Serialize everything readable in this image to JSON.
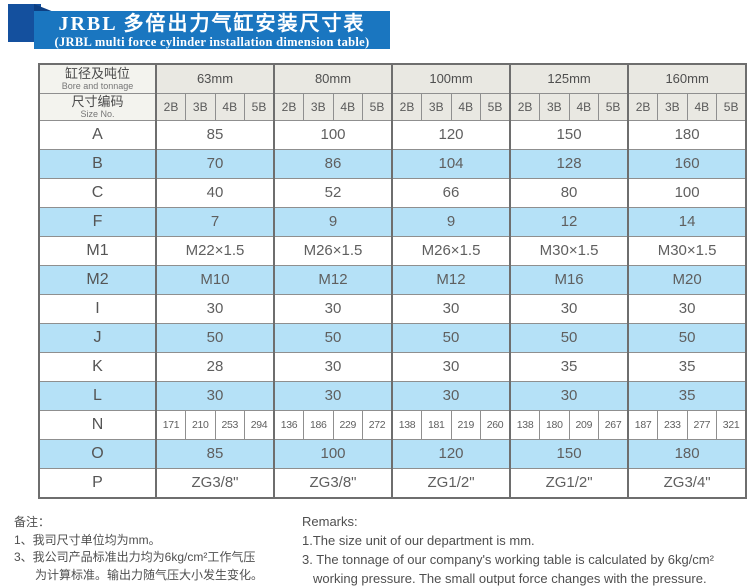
{
  "banner": {
    "title_cn": "JRBL 多倍出力气缸安装尺寸表",
    "title_en": "(JRBL multi force cylinder installation dimension table)"
  },
  "colors": {
    "banner_blue": "#1a76c0",
    "ribbon_navy": "#14509e",
    "row_shade_blue": "#b5e1f7",
    "header_gray": "#e9e8e2",
    "border_gray": "#8f8f8f"
  },
  "table": {
    "header": {
      "bore_label_cn": "缸径及吨位",
      "bore_label_en": "Bore and tonnage",
      "size_label_cn": "尺寸编码",
      "size_label_en": "Size No.",
      "bores": [
        "63mm",
        "80mm",
        "100mm",
        "125mm",
        "160mm"
      ],
      "size_codes": [
        "2B",
        "3B",
        "4B",
        "5B"
      ]
    },
    "rows": [
      {
        "label": "A",
        "type": "merged",
        "shade": false,
        "values": [
          "85",
          "100",
          "120",
          "150",
          "180"
        ]
      },
      {
        "label": "B",
        "type": "merged",
        "shade": true,
        "values": [
          "70",
          "86",
          "104",
          "128",
          "160"
        ]
      },
      {
        "label": "C",
        "type": "merged",
        "shade": false,
        "values": [
          "40",
          "52",
          "66",
          "80",
          "100"
        ]
      },
      {
        "label": "F",
        "type": "merged",
        "shade": true,
        "values": [
          "7",
          "9",
          "9",
          "12",
          "14"
        ]
      },
      {
        "label": "M1",
        "type": "merged",
        "shade": false,
        "values": [
          "M22×1.5",
          "M26×1.5",
          "M26×1.5",
          "M30×1.5",
          "M30×1.5"
        ]
      },
      {
        "label": "M2",
        "type": "merged",
        "shade": true,
        "values": [
          "M10",
          "M12",
          "M12",
          "M16",
          "M20"
        ]
      },
      {
        "label": "I",
        "type": "merged",
        "shade": false,
        "values": [
          "30",
          "30",
          "30",
          "30",
          "30"
        ]
      },
      {
        "label": "J",
        "type": "merged",
        "shade": true,
        "values": [
          "50",
          "50",
          "50",
          "50",
          "50"
        ]
      },
      {
        "label": "K",
        "type": "merged",
        "shade": false,
        "values": [
          "28",
          "30",
          "30",
          "35",
          "35"
        ]
      },
      {
        "label": "L",
        "type": "merged",
        "shade": true,
        "values": [
          "30",
          "30",
          "30",
          "30",
          "35"
        ]
      },
      {
        "label": "N",
        "type": "per_code",
        "shade": false,
        "values": [
          [
            "171",
            "210",
            "253",
            "294"
          ],
          [
            "136",
            "186",
            "229",
            "272"
          ],
          [
            "138",
            "181",
            "219",
            "260"
          ],
          [
            "138",
            "180",
            "209",
            "267"
          ],
          [
            "187",
            "233",
            "277",
            "321"
          ]
        ]
      },
      {
        "label": "O",
        "type": "merged",
        "shade": true,
        "values": [
          "85",
          "100",
          "120",
          "150",
          "180"
        ]
      },
      {
        "label": "P",
        "type": "merged",
        "shade": false,
        "values": [
          "ZG3/8\"",
          "ZG3/8\"",
          "ZG1/2\"",
          "ZG1/2\"",
          "ZG3/4\""
        ]
      }
    ]
  },
  "notes_cn": {
    "heading": "备注：",
    "line1": "1、我司尺寸单位均为mm。",
    "line2": "3、我公司产品标准出力均为6kg/cm²工作气压",
    "line2_cont": "为计算标准。输出力随气压大小发生变化。"
  },
  "notes_en": {
    "heading": "Remarks:",
    "line1": "1.The size unit of our department is mm.",
    "line2": "3. The tonnage of our company's working table is calculated by 6kg/cm²",
    "line2_cont": "working pressure. The small output force changes with the pressure."
  }
}
